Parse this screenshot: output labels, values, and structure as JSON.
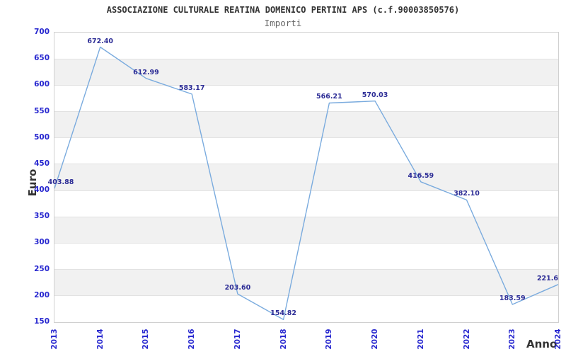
{
  "chart_data": {
    "type": "line",
    "title": "ASSOCIAZIONE CULTURALE REATINA DOMENICO PERTINI APS (c.f.90003850576)",
    "subtitle": "Importi",
    "xlabel": "Anno",
    "ylabel": "Euro",
    "categories": [
      "2013",
      "2014",
      "2015",
      "2016",
      "2017",
      "2018",
      "2019",
      "2020",
      "2021",
      "2022",
      "2023",
      "2024"
    ],
    "series": [
      {
        "name": "Importi",
        "values": [
          403.88,
          672.4,
          612.99,
          583.17,
          203.6,
          154.82,
          566.21,
          570.03,
          416.59,
          382.1,
          183.59,
          221.6
        ]
      }
    ],
    "point_labels": [
      "403.88",
      "672.40",
      "612.99",
      "583.17",
      "203.60",
      "154.82",
      "566.21",
      "570.03",
      "416.59",
      "382.10",
      "183.59",
      "221.6"
    ],
    "ylim": [
      150,
      700
    ],
    "ytick_step": 50,
    "yticks": [
      150,
      200,
      250,
      300,
      350,
      400,
      450,
      500,
      550,
      600,
      650,
      700
    ],
    "grid": "horizontal-alternating-bands",
    "legend": "none",
    "colors": {
      "line": "#7aabde",
      "axis_tick_label": "#2626cf",
      "point_label": "#2d2d96",
      "band": "#f1f1f1",
      "gridline": "#e2e2e2",
      "plot_border": "#d0d0d0",
      "title": "#333333",
      "subtitle": "#666666",
      "axis_title": "#333333",
      "background": "#ffffff"
    }
  }
}
